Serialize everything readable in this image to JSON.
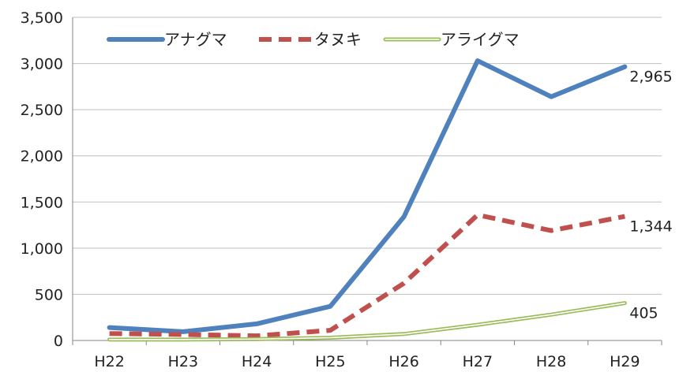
{
  "chart_data": {
    "type": "line",
    "categories": [
      "H22",
      "H23",
      "H24",
      "H25",
      "H26",
      "H27",
      "H28",
      "H29"
    ],
    "ylim": [
      0,
      3500
    ],
    "yticks": [
      0,
      500,
      1000,
      1500,
      2000,
      2500,
      3000,
      3500
    ],
    "ytick_labels": [
      "0",
      "500",
      "1,000",
      "1,500",
      "2,000",
      "2,500",
      "3,000",
      "3,500"
    ],
    "grid": "horizontal",
    "legend_position": "top-left",
    "series": [
      {
        "name": "アナグマ",
        "values": [
          140,
          95,
          180,
          370,
          1340,
          3030,
          2640,
          2965
        ],
        "color": "#4f81bd",
        "style": "solid",
        "end_label": "2,965"
      },
      {
        "name": "タヌキ",
        "values": [
          75,
          65,
          50,
          110,
          620,
          1360,
          1190,
          1344
        ],
        "color": "#c0504d",
        "style": "dashed",
        "end_label": "1,344"
      },
      {
        "name": "アライグマ",
        "values": [
          10,
          10,
          15,
          30,
          70,
          170,
          280,
          405
        ],
        "color": "#9bbb59",
        "style": "double",
        "end_label": "405"
      }
    ]
  }
}
